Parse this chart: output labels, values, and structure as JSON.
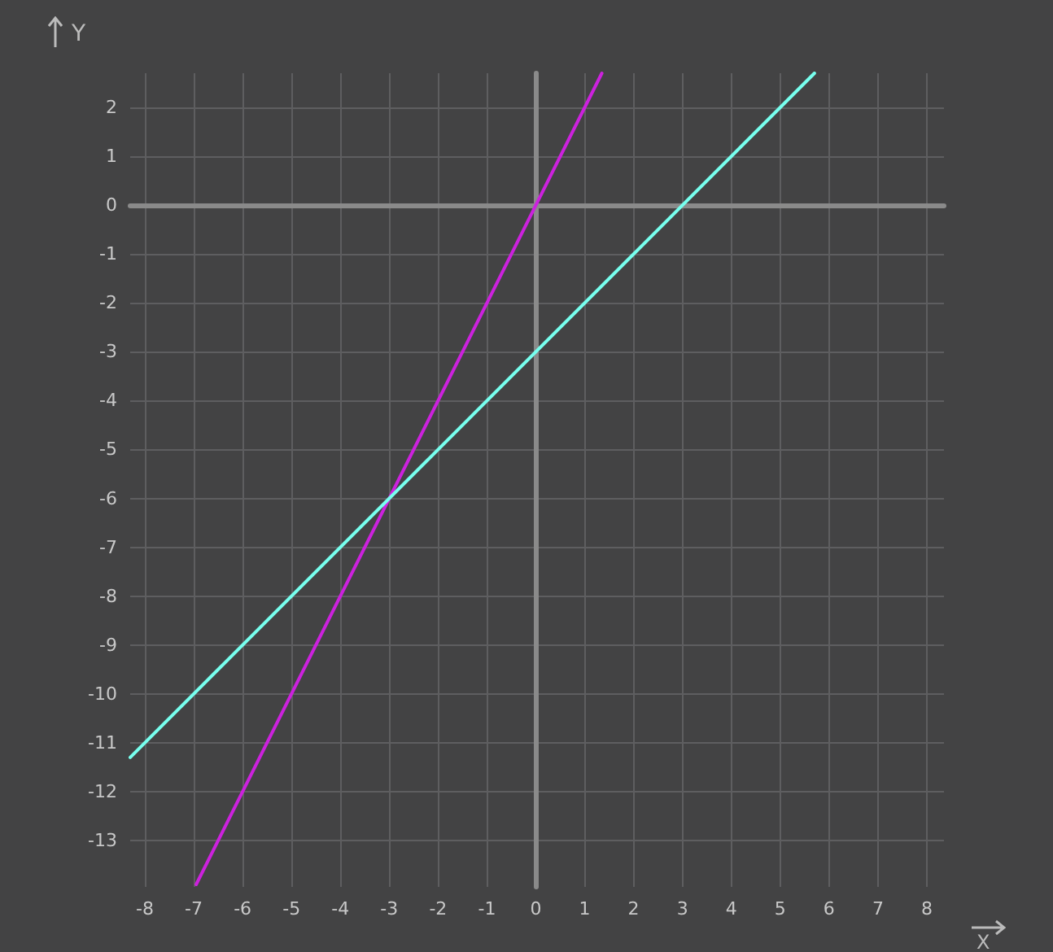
{
  "chart_data": {
    "type": "line",
    "xlabel": "X",
    "ylabel": "Y",
    "xlim": [
      -8.3,
      8.35
    ],
    "ylim": [
      -13.95,
      2.7
    ],
    "xticks": [
      -8,
      -7,
      -6,
      -5,
      -4,
      -3,
      -2,
      -1,
      0,
      1,
      2,
      3,
      4,
      5,
      6,
      7,
      8
    ],
    "yticks": [
      -13,
      -12,
      -11,
      -10,
      -9,
      -8,
      -7,
      -6,
      -5,
      -4,
      -3,
      -2,
      -1,
      0,
      1,
      2
    ],
    "grid": true,
    "marker": "none",
    "line_style": "solid",
    "series": [
      {
        "color": "#cc22dd",
        "x": [
          -6.95,
          1.35
        ],
        "values": [
          -13.9,
          2.7
        ]
      },
      {
        "color": "#77ffee",
        "x": [
          -8.3,
          5.7
        ],
        "values": [
          -11.3,
          2.7
        ]
      }
    ]
  }
}
